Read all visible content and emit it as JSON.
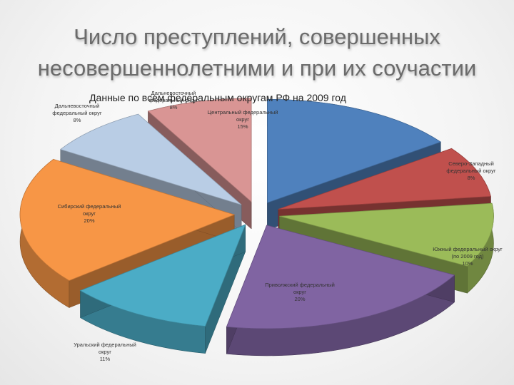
{
  "title": {
    "line1": "Число преступлений, совершенных",
    "line2": "несовершеннолетними и при их соучастии"
  },
  "chart_data": {
    "type": "pie",
    "title": "Данные по всем федеральным округам РФ на 2009 год",
    "style": "3d-exploded",
    "slices": [
      {
        "name": "Центральный федеральный округ",
        "value": 15,
        "label": "15%",
        "color": "#4F81BD"
      },
      {
        "name": "Северо-Западный федеральный округ",
        "value": 8,
        "label": "8%",
        "color": "#C0504D"
      },
      {
        "name": "Южный федеральный округ (по 2009 год)",
        "value": 10,
        "label": "10%",
        "color": "#9BBB59"
      },
      {
        "name": "Приволжский федеральный округ",
        "value": 20,
        "label": "20%",
        "color": "#8064A2"
      },
      {
        "name": "Уральский федеральный округ",
        "value": 11,
        "label": "11%",
        "color": "#4BACC6"
      },
      {
        "name": "Сибирский федеральный округ",
        "value": 20,
        "label": "20%",
        "color": "#F79646"
      },
      {
        "name": "Дальневосточный федеральный округ",
        "value": 8,
        "label": "8%",
        "color": "#B9CDE5"
      },
      {
        "name": "Дальневосточный федеральный округ",
        "value": 8,
        "label": "8%",
        "color": "#D99594"
      }
    ]
  }
}
